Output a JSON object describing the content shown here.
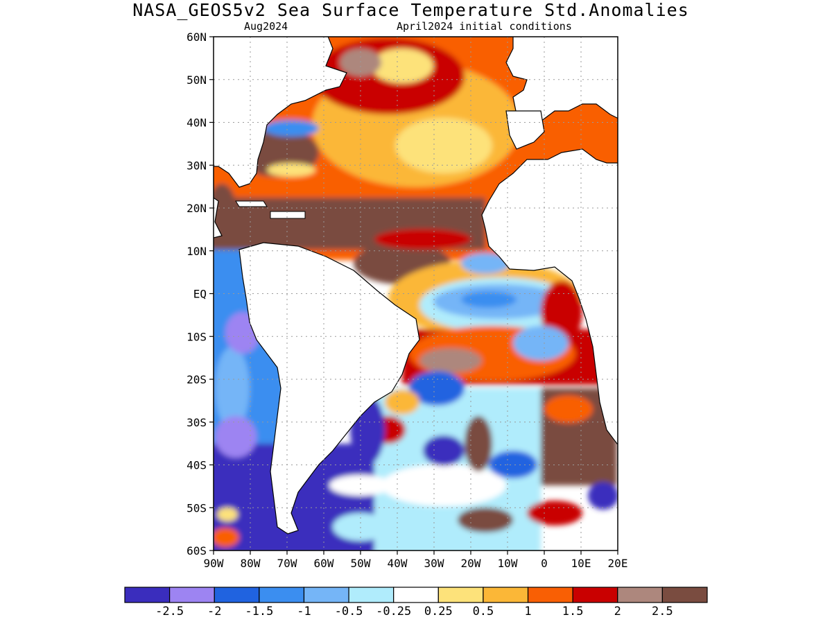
{
  "header": {
    "title": "NASA_GEOS5v2 Sea Surface Temperature Std.Anomalies",
    "valid_month": "Aug2024",
    "init_conditions": "April2024 initial conditions"
  },
  "map": {
    "lon_range": [
      -90,
      20
    ],
    "lat_range": [
      -60,
      60
    ],
    "lat_ticks": [
      {
        "value": 60,
        "label": "60N"
      },
      {
        "value": 50,
        "label": "50N"
      },
      {
        "value": 40,
        "label": "40N"
      },
      {
        "value": 30,
        "label": "30N"
      },
      {
        "value": 20,
        "label": "20N"
      },
      {
        "value": 10,
        "label": "10N"
      },
      {
        "value": 0,
        "label": "EQ"
      },
      {
        "value": -10,
        "label": "10S"
      },
      {
        "value": -20,
        "label": "20S"
      },
      {
        "value": -30,
        "label": "30S"
      },
      {
        "value": -40,
        "label": "40S"
      },
      {
        "value": -50,
        "label": "50S"
      },
      {
        "value": -60,
        "label": "60S"
      }
    ],
    "lon_ticks": [
      {
        "value": -90,
        "label": "90W"
      },
      {
        "value": -80,
        "label": "80W"
      },
      {
        "value": -70,
        "label": "70W"
      },
      {
        "value": -60,
        "label": "60W"
      },
      {
        "value": -50,
        "label": "50W"
      },
      {
        "value": -40,
        "label": "40W"
      },
      {
        "value": -30,
        "label": "30W"
      },
      {
        "value": -20,
        "label": "20W"
      },
      {
        "value": -10,
        "label": "10W"
      },
      {
        "value": 0,
        "label": "0"
      },
      {
        "value": 10,
        "label": "10E"
      },
      {
        "value": 20,
        "label": "20E"
      }
    ],
    "colors": {
      "land": "#ffffff",
      "coast": "#000000",
      "grid": "#9a9a9a"
    }
  },
  "colorbar": {
    "colors": [
      "#3a2dbd",
      "#9d84f2",
      "#2063e0",
      "#3b8ef0",
      "#75b5f7",
      "#b0ecfc",
      "#ffffff",
      "#fde27a",
      "#fbb737",
      "#f95f04",
      "#c90000",
      "#ad877d",
      "#7a4c40"
    ],
    "labels": [
      "-2.5",
      "-2",
      "-1.5",
      "-1",
      "-0.5",
      "-0.25",
      "0.25",
      "0.5",
      "1",
      "1.5",
      "2",
      "2.5"
    ]
  }
}
